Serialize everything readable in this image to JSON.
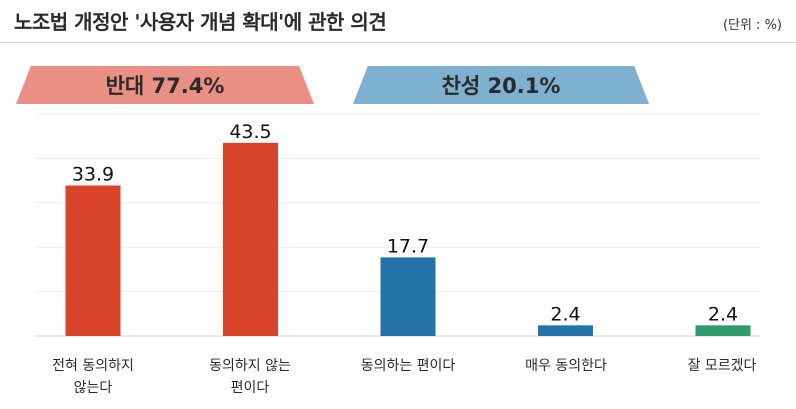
{
  "header": {
    "title": "노조법 개정안 '사용자 개념 확대'에 관한 의견",
    "unit": "(단위 : %)"
  },
  "banners": {
    "oppose": "반대 77.4%",
    "support": "찬성 20.1%"
  },
  "colors": {
    "oppose_bar": "#d9432a",
    "support_bar": "#2373a8",
    "unknown_bar": "#2e9a6e",
    "oppose_banner": "#ea8f83",
    "support_banner": "#7eb0cf"
  },
  "chart_data": {
    "type": "bar",
    "categories": [
      "전혀 동의하지 않는다",
      "동의하지 않는 편이다",
      "동의하는 편이다",
      "매우 동의한다",
      "잘 모르겠다"
    ],
    "values": [
      33.9,
      43.5,
      17.7,
      2.4,
      2.4
    ],
    "value_labels": [
      "33.9",
      "43.5",
      "17.7",
      "2.4",
      "2.4"
    ],
    "groups": [
      "oppose",
      "oppose",
      "support",
      "support",
      "unknown"
    ],
    "ylim": [
      0,
      50
    ],
    "grid": true,
    "legend": "none"
  },
  "labels": {
    "cat0_line1": "전혀 동의하지",
    "cat0_line2": "않는다",
    "cat1_line1": "동의하지 않는",
    "cat1_line2": "편이다",
    "cat2_line1": "동의하는 편이다",
    "cat3_line1": "매우 동의한다",
    "cat4_line1": "잘 모르겠다"
  }
}
